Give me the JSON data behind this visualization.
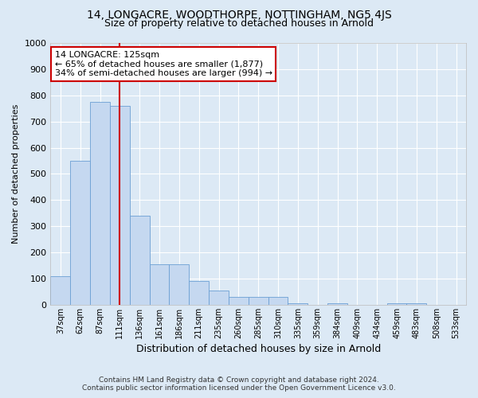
{
  "title1": "14, LONGACRE, WOODTHORPE, NOTTINGHAM, NG5 4JS",
  "title2": "Size of property relative to detached houses in Arnold",
  "xlabel": "Distribution of detached houses by size in Arnold",
  "ylabel": "Number of detached properties",
  "footer1": "Contains HM Land Registry data © Crown copyright and database right 2024.",
  "footer2": "Contains public sector information licensed under the Open Government Licence v3.0.",
  "annotation_line1": "14 LONGACRE: 125sqm",
  "annotation_line2": "← 65% of detached houses are smaller (1,877)",
  "annotation_line3": "34% of semi-detached houses are larger (994) →",
  "bar_categories": [
    "37sqm",
    "62sqm",
    "87sqm",
    "111sqm",
    "136sqm",
    "161sqm",
    "186sqm",
    "211sqm",
    "235sqm",
    "260sqm",
    "285sqm",
    "310sqm",
    "335sqm",
    "359sqm",
    "384sqm",
    "409sqm",
    "434sqm",
    "459sqm",
    "483sqm",
    "508sqm",
    "533sqm"
  ],
  "bar_heights": [
    110,
    550,
    775,
    760,
    340,
    155,
    155,
    90,
    55,
    30,
    30,
    30,
    5,
    0,
    5,
    0,
    0,
    5,
    5,
    0,
    0
  ],
  "bar_color": "#c5d8f0",
  "bar_edge_color": "#6b9fd4",
  "vline_color": "#cc0000",
  "vline_pos": 3.5,
  "ylim": [
    0,
    1000
  ],
  "yticks": [
    0,
    100,
    200,
    300,
    400,
    500,
    600,
    700,
    800,
    900,
    1000
  ],
  "bg_color": "#dce9f5",
  "grid_color": "#ffffff",
  "annotation_box_color": "#ffffff",
  "annotation_box_edge": "#cc0000",
  "title1_fontsize": 10,
  "title2_fontsize": 9,
  "xlabel_fontsize": 9,
  "ylabel_fontsize": 8,
  "annotation_fontsize": 8,
  "footer_fontsize": 6.5
}
